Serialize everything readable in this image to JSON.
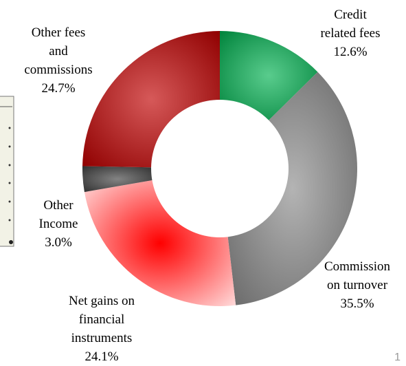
{
  "chart_data": {
    "type": "donut",
    "categories": [
      "Credit related fees",
      "Commission on turnover",
      "Net gains on financial instruments",
      "Other Income",
      "Other fees and commissions"
    ],
    "values": [
      12.6,
      35.5,
      24.1,
      3.0,
      24.7
    ],
    "value_labels": [
      "12.6%",
      "35.5%",
      "24.1%",
      "3.0%",
      "24.7%"
    ],
    "colors": [
      "#00b050",
      "#8c8c8c",
      "#ff0000",
      "#404040",
      "#c00000"
    ]
  },
  "page_number": "1"
}
